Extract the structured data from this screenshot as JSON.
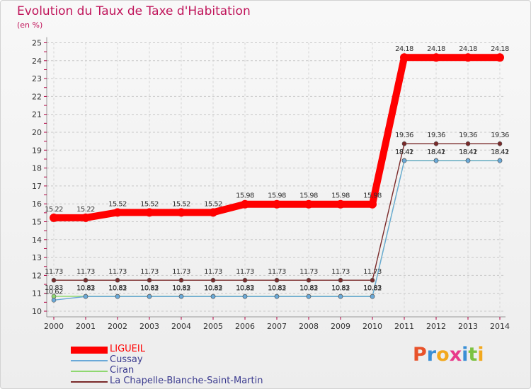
{
  "title": "Evolution du Taux de Taxe d'Habitation",
  "unit_label": "(en %)",
  "logo": [
    "P",
    "r",
    "o",
    "x",
    "i",
    "t",
    "i"
  ],
  "chart_data": {
    "type": "line",
    "title": "Evolution du Taux de Taxe d'Habitation",
    "ylabel": "(en %)",
    "xlabel": "",
    "ylim": [
      10,
      25
    ],
    "yticks": [
      "10",
      "11",
      "12",
      "13",
      "14",
      "15",
      "16",
      "17",
      "18",
      "19",
      "20",
      "21",
      "22",
      "23",
      "24",
      "25"
    ],
    "x": [
      "2000",
      "2001",
      "2002",
      "2003",
      "2004",
      "2005",
      "2006",
      "2007",
      "2008",
      "2009",
      "2010",
      "2011",
      "2012",
      "2013",
      "2014"
    ],
    "grid": true,
    "series": [
      {
        "name": "La Chapelle-Blanche-Saint-Martin",
        "color": "#7a2a2a",
        "values": [
          11.73,
          11.73,
          11.73,
          11.73,
          11.73,
          11.73,
          11.73,
          11.73,
          11.73,
          11.73,
          11.73,
          19.36,
          19.36,
          19.36,
          19.36
        ],
        "labels": [
          "11.73",
          "11.73",
          "11.73",
          "11.73",
          "11.73",
          "11.73",
          "11.73",
          "11.73",
          "11.73",
          "11.73",
          "11.73",
          "19.36",
          "19.36",
          "19.36",
          "19.36"
        ]
      },
      {
        "name": "Ciran",
        "color": "#8fd870",
        "values": [
          10.83,
          10.83,
          10.83,
          10.83,
          10.83,
          10.83,
          10.83,
          10.83,
          10.83,
          10.83,
          10.83,
          18.42,
          18.42,
          18.42,
          18.42
        ],
        "labels": [
          "10.83",
          "10.83",
          "10.83",
          "10.83",
          "10.83",
          "10.83",
          "10.83",
          "10.83",
          "10.83",
          "10.83",
          "10.83",
          "18.42",
          "18.42",
          "18.42",
          "18.42"
        ]
      },
      {
        "name": "Cussay",
        "color": "#6aa9d8",
        "values": [
          10.62,
          10.82,
          10.82,
          10.82,
          10.82,
          10.82,
          10.82,
          10.82,
          10.82,
          10.82,
          10.82,
          18.41,
          18.41,
          18.41,
          18.41
        ],
        "labels": [
          "10.62",
          "10.82",
          "10.82",
          "10.82",
          "10.82",
          "10.82",
          "10.82",
          "10.82",
          "10.82",
          "10.82",
          "10.82",
          "18.41",
          "18.41",
          "18.41",
          "18.41"
        ]
      },
      {
        "name": "LIGUEIL",
        "color": "#ff0000",
        "values": [
          15.22,
          15.22,
          15.52,
          15.52,
          15.52,
          15.52,
          15.98,
          15.98,
          15.98,
          15.98,
          15.98,
          24.18,
          24.18,
          24.18,
          24.18
        ],
        "labels": [
          "15.22",
          "15.22",
          "15.52",
          "15.52",
          "15.52",
          "15.52",
          "15.98",
          "15.98",
          "15.98",
          "15.98",
          "15.98",
          "24.18",
          "24.18",
          "24.18",
          "24.18"
        ]
      }
    ],
    "legend": [
      "LIGUEIL",
      "Cussay",
      "Ciran",
      "La Chapelle-Blanche-Saint-Martin"
    ],
    "legend_colors": [
      "#ff0000",
      "#6aa9d8",
      "#8fd870",
      "#7a2a2a"
    ],
    "legend_placement": "bottom-left"
  }
}
